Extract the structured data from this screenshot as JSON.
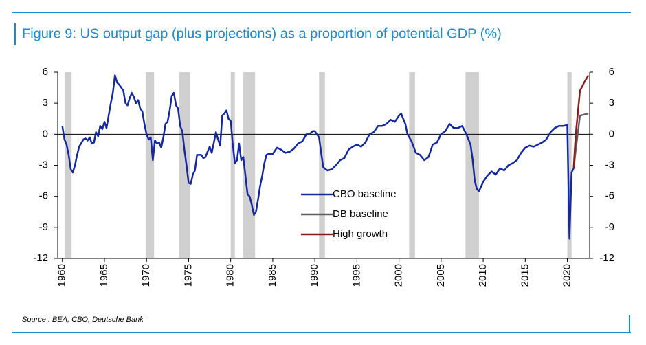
{
  "chart_data": {
    "type": "line",
    "title": "Figure 9: US output gap (plus projections) as a proportion of potential GDP (%)",
    "source": "Source : BEA, CBO, Deutsche Bank",
    "xlim": [
      1959.45,
      2022.65
    ],
    "xticks": [
      1960,
      1965,
      1970,
      1975,
      1980,
      1985,
      1990,
      1995,
      2000,
      2005,
      2010,
      2015,
      2020
    ],
    "ylim": [
      -12,
      6
    ],
    "yticks": [
      -12,
      -9,
      -6,
      -3,
      0,
      3,
      6
    ],
    "y2lim": [
      -12,
      6
    ],
    "y2ticks": [
      -12,
      -9,
      -6,
      -3,
      0,
      3,
      6
    ],
    "recession_color": "#d0d0d0",
    "recessions": [
      [
        1960.3,
        1961.1
      ],
      [
        1969.9,
        1970.9
      ],
      [
        1973.9,
        1975.2
      ],
      [
        1980.0,
        1980.5
      ],
      [
        1981.5,
        1982.9
      ],
      [
        1990.5,
        1991.2
      ],
      [
        2001.2,
        2001.9
      ],
      [
        2007.9,
        2009.5
      ],
      [
        2020.0,
        2020.5
      ]
    ],
    "series": [
      {
        "name": "CBO baseline",
        "color": "#1428a0",
        "x": [
          1960.0,
          1960.25,
          1960.5,
          1960.75,
          1961.0,
          1961.25,
          1961.5,
          1961.75,
          1962.0,
          1962.5,
          1962.75,
          1963.0,
          1963.25,
          1963.5,
          1963.75,
          1964.0,
          1964.25,
          1964.5,
          1964.75,
          1965.0,
          1965.25,
          1965.5,
          1965.75,
          1966.0,
          1966.25,
          1966.5,
          1966.75,
          1967.0,
          1967.25,
          1967.5,
          1967.75,
          1968.0,
          1968.25,
          1968.5,
          1968.75,
          1969.0,
          1969.25,
          1969.5,
          1969.75,
          1970.0,
          1970.25,
          1970.5,
          1970.75,
          1971.0,
          1971.25,
          1971.5,
          1971.75,
          1972.0,
          1972.25,
          1972.5,
          1972.75,
          1973.0,
          1973.25,
          1973.5,
          1973.75,
          1974.0,
          1974.25,
          1974.5,
          1974.75,
          1975.0,
          1975.25,
          1975.5,
          1975.75,
          1976.0,
          1976.5,
          1976.75,
          1977.0,
          1977.5,
          1977.75,
          1978.0,
          1978.25,
          1978.5,
          1978.75,
          1979.0,
          1979.25,
          1979.5,
          1979.75,
          1980.0,
          1980.25,
          1980.5,
          1980.75,
          1981.0,
          1981.25,
          1981.5,
          1981.75,
          1982.0,
          1982.25,
          1982.5,
          1982.75,
          1983.0,
          1983.25,
          1983.5,
          1983.75,
          1984.0,
          1984.25,
          1984.5,
          1985.0,
          1985.5,
          1986.0,
          1986.5,
          1987.0,
          1987.5,
          1988.0,
          1988.5,
          1989.0,
          1989.5,
          1989.75,
          1990.0,
          1990.5,
          1990.75,
          1991.0,
          1991.5,
          1992.0,
          1992.5,
          1993.0,
          1993.5,
          1994.0,
          1994.5,
          1995.0,
          1995.5,
          1996.0,
          1996.5,
          1997.0,
          1997.5,
          1998.0,
          1998.5,
          1999.0,
          1999.5,
          2000.0,
          2000.25,
          2000.5,
          2000.75,
          2001.0,
          2001.5,
          2002.0,
          2002.5,
          2003.0,
          2003.5,
          2004.0,
          2004.5,
          2005.0,
          2005.5,
          2006.0,
          2006.5,
          2007.0,
          2007.5,
          2008.0,
          2008.5,
          2008.75,
          2009.0,
          2009.25,
          2009.5,
          2010.0,
          2010.5,
          2011.0,
          2011.5,
          2012.0,
          2012.5,
          2013.0,
          2013.5,
          2014.0,
          2014.5,
          2015.0,
          2015.5,
          2016.0,
          2016.5,
          2017.0,
          2017.5,
          2018.0,
          2018.5,
          2019.0,
          2019.5,
          2020.0,
          2020.25,
          2020.5,
          2020.75
        ],
        "values": [
          0.8,
          -0.5,
          -1.0,
          -2.0,
          -3.4,
          -3.7,
          -3.0,
          -2.0,
          -1.2,
          -0.5,
          -0.4,
          -0.6,
          -0.3,
          -0.9,
          -0.8,
          0.2,
          -0.2,
          0.8,
          0.5,
          1.2,
          0.6,
          1.8,
          3.0,
          4.0,
          5.7,
          5.0,
          4.8,
          4.5,
          4.2,
          3.0,
          2.8,
          3.5,
          4.0,
          3.6,
          3.0,
          3.3,
          2.5,
          2.2,
          1.0,
          0.0,
          -0.5,
          -0.3,
          -2.5,
          -0.6,
          -0.9,
          -0.8,
          -1.3,
          -0.3,
          1.0,
          1.2,
          2.3,
          3.7,
          4.0,
          2.8,
          2.5,
          0.8,
          0.3,
          -1.5,
          -3.0,
          -4.7,
          -4.8,
          -3.9,
          -3.5,
          -2.0,
          -2.0,
          -2.3,
          -2.2,
          -1.2,
          -1.8,
          -0.8,
          0.2,
          -0.5,
          -1.1,
          1.8,
          2.0,
          2.3,
          1.5,
          1.3,
          -1.0,
          -2.8,
          -2.5,
          -0.9,
          -2.5,
          -2.2,
          -4.0,
          -5.8,
          -6.0,
          -6.8,
          -7.8,
          -7.5,
          -6.3,
          -5.0,
          -4.0,
          -2.8,
          -2.0,
          -1.9,
          -1.9,
          -1.3,
          -1.5,
          -1.8,
          -1.7,
          -1.4,
          -0.9,
          -0.7,
          0.0,
          0.1,
          0.3,
          0.3,
          -0.3,
          -1.8,
          -3.2,
          -3.5,
          -3.4,
          -3.0,
          -2.5,
          -2.3,
          -1.5,
          -1.2,
          -1.0,
          -1.2,
          -0.8,
          0.0,
          0.2,
          0.8,
          0.8,
          1.0,
          1.4,
          1.2,
          1.8,
          2.0,
          1.5,
          1.0,
          0.0,
          -0.7,
          -1.8,
          -2.0,
          -2.5,
          -2.2,
          -1.0,
          -0.8,
          0.0,
          0.3,
          1.0,
          0.6,
          0.6,
          0.8,
          0.0,
          -1.0,
          -2.5,
          -4.5,
          -5.3,
          -5.5,
          -4.6,
          -4.0,
          -3.6,
          -3.9,
          -3.3,
          -3.5,
          -3.0,
          -2.8,
          -2.5,
          -1.8,
          -1.3,
          -1.1,
          -1.2,
          -1.0,
          -0.8,
          -0.5,
          0.2,
          0.6,
          0.8,
          0.8,
          0.9,
          -10.1,
          -3.7,
          -3.3
        ]
      },
      {
        "name": "DB baseline",
        "color": "#5e5e66",
        "x": [
          2020.75,
          2021.0,
          2021.5,
          2022.0,
          2022.5
        ],
        "values": [
          -3.3,
          -1.5,
          1.8,
          1.9,
          2.0
        ]
      },
      {
        "name": "High growth",
        "color": "#8b1a1a",
        "x": [
          2020.75,
          2021.0,
          2021.5,
          2022.0,
          2022.5
        ],
        "values": [
          -3.3,
          0.0,
          4.2,
          5.0,
          5.7
        ]
      }
    ]
  }
}
